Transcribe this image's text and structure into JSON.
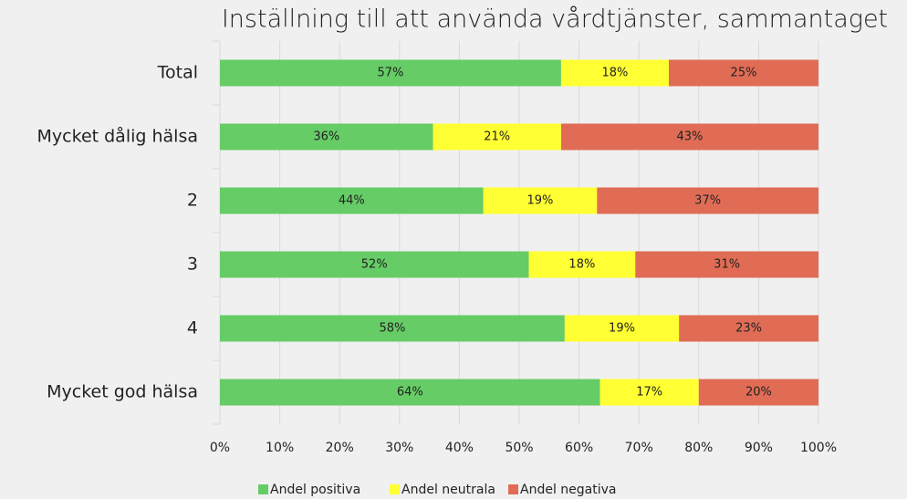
{
  "chart_data": {
    "type": "stacked_barh",
    "title": "Inställning till att använda vårdtjänster, sammantaget",
    "categories": [
      "Total",
      "Mycket dålig hälsa",
      "2",
      "3",
      "4",
      "Mycket god hälsa"
    ],
    "series": [
      {
        "name": "Andel positiva",
        "color": "#66cc66",
        "values": [
          57,
          35.6,
          44,
          51.6,
          57.6,
          63.5
        ],
        "value_labels": [
          "57%",
          "36%",
          "44%",
          "52%",
          "58%",
          "64%"
        ]
      },
      {
        "name": "Andel neutrala",
        "color": "#ffff33",
        "values": [
          18,
          21.4,
          19,
          17.8,
          19.1,
          16.5
        ],
        "value_labels": [
          "18%",
          "21%",
          "19%",
          "18%",
          "19%",
          "17%"
        ]
      },
      {
        "name": "Andel negativa",
        "color": "#e06c55",
        "values": [
          25,
          43,
          37,
          30.6,
          23.3,
          20
        ],
        "value_labels": [
          "25%",
          "43%",
          "37%",
          "31%",
          "23%",
          "20%"
        ]
      }
    ],
    "xlim": [
      0,
      100
    ],
    "xticks": [
      {
        "value": 0,
        "label": "0%"
      },
      {
        "value": 10,
        "label": "10%"
      },
      {
        "value": 20,
        "label": "20%"
      },
      {
        "value": 30,
        "label": "30%"
      },
      {
        "value": 40,
        "label": "40%"
      },
      {
        "value": 50,
        "label": "50%"
      },
      {
        "value": 60,
        "label": "60%"
      },
      {
        "value": 70,
        "label": "70%"
      },
      {
        "value": 80,
        "label": "80%"
      },
      {
        "value": 90,
        "label": "90%"
      },
      {
        "value": 100,
        "label": "100%"
      }
    ],
    "grid": true,
    "legend": "bottom"
  }
}
